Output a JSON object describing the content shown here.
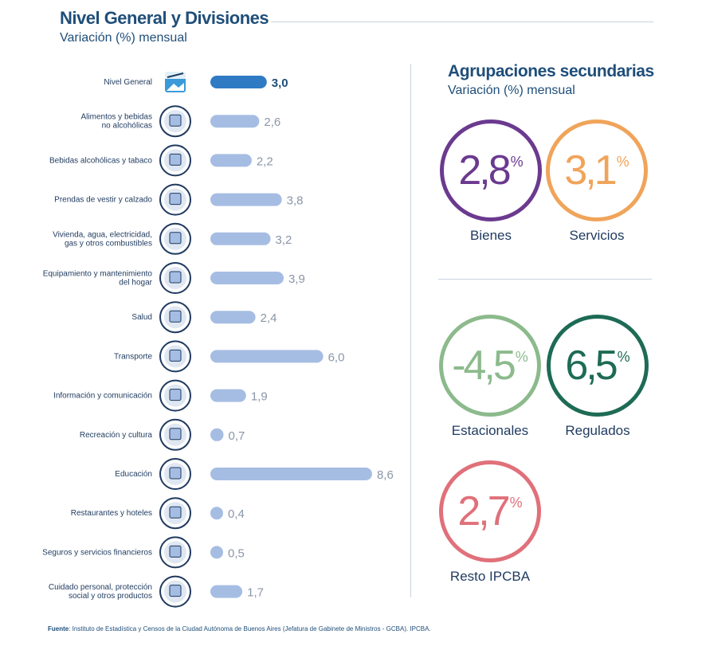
{
  "left_panel": {
    "title": "Nivel General y Divisiones",
    "subtitle": "Variación (%) mensual"
  },
  "chart_data": {
    "type": "bar",
    "orientation": "horizontal",
    "categories": [
      "Nivel General",
      "Alimentos y bebidas\nno alcohólicas",
      "Bebidas alcohólicas y tabaco",
      "Prendas de vestir y calzado",
      "Vivienda, agua, electricidad,\ngas y otros combustibles",
      "Equipamiento y mantenimiento\ndel hogar",
      "Salud",
      "Transporte",
      "Información y comunicación",
      "Recreación y cultura",
      "Educación",
      "Restaurantes y hoteles",
      "Seguros y servicios financieros",
      "Cuidado personal, protección\nsocial y otros productos"
    ],
    "values": [
      3.0,
      2.6,
      2.2,
      3.8,
      3.2,
      3.9,
      2.4,
      6.0,
      1.9,
      0.7,
      8.6,
      0.4,
      0.5,
      1.7
    ],
    "value_labels": [
      "3,0",
      "2,6",
      "2,2",
      "3,8",
      "3,2",
      "3,9",
      "2,4",
      "6,0",
      "1,9",
      "0,7",
      "8,6",
      "0,4",
      "0,5",
      "1,7"
    ],
    "highlight_index": 0,
    "colors": {
      "highlight": "#2e7bc4",
      "bar": "#a6bde3",
      "highlight_label": "#1f4e79",
      "label": "#8a96a8"
    },
    "icons": [
      "ipc-logo-icon",
      "food-icon",
      "wine-bottle-icon",
      "clothing-icon",
      "house-icon",
      "washing-machine-icon",
      "doctor-icon",
      "airplane-car-icon",
      "computer-icon",
      "theater-masks-icon",
      "school-building-icon",
      "cloche-icon",
      "bank-icon",
      "personal-care-icon"
    ]
  },
  "right_panel": {
    "title": "Agrupaciones secundarias",
    "subtitle": "Variación (%) mensual",
    "groups": [
      {
        "value": "2,8",
        "pct": "%",
        "label": "Bienes",
        "color": "#6b3a8f"
      },
      {
        "value": "3,1",
        "pct": "%",
        "label": "Servicios",
        "color": "#f0a45a"
      },
      {
        "value": "-4,5",
        "pct": "%",
        "label": "Estacionales",
        "color": "#8cba8c"
      },
      {
        "value": "6,5",
        "pct": "%",
        "label": "Regulados",
        "color": "#1e6b55"
      },
      {
        "value": "2,7",
        "pct": "%",
        "label": "Resto IPCBA",
        "color": "#e0707a"
      }
    ]
  },
  "source": {
    "prefix": "Fuente",
    "text": ": Instituto de Estadística y Censos de la Ciudad Autónoma de Buenos Aires (Jefatura de Gabinete de Ministros - GCBA). IPCBA."
  }
}
